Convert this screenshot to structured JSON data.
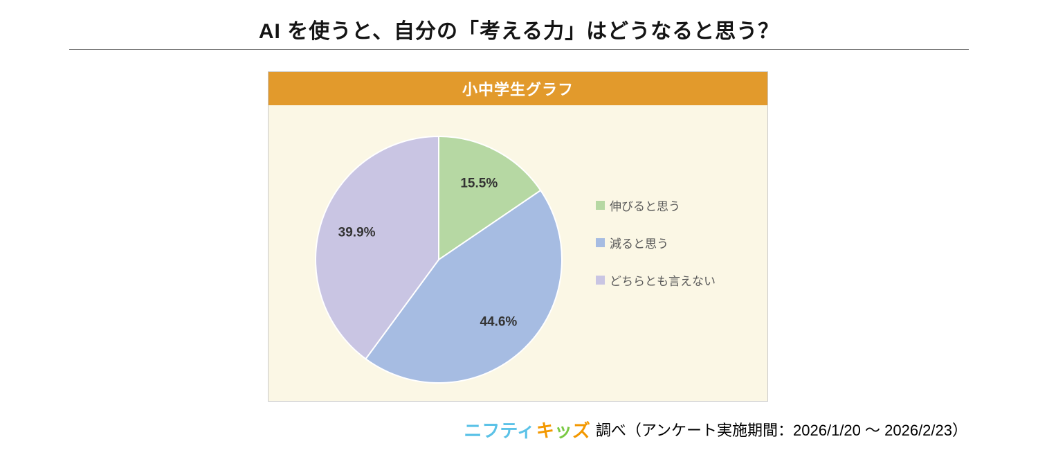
{
  "title": "AI を使うと、自分の「考える力」はどうなると思う？",
  "panel": {
    "header": "小中学生グラフ"
  },
  "chart_data": {
    "type": "pie",
    "title": "小中学生グラフ",
    "labels": [
      "伸びると思う",
      "減ると思う",
      "どちらとも言えない"
    ],
    "values": [
      15.5,
      44.6,
      39.9
    ],
    "value_labels": [
      "15.5%",
      "44.6%",
      "39.9%"
    ],
    "colors": [
      "#b6d8a3",
      "#a6bce2",
      "#c9c5e3"
    ],
    "start_angle_deg": 0,
    "direction": "clockwise",
    "legend_position": "right",
    "slice_label_color": "#333333",
    "slice_border_color": "#ffffff"
  },
  "footer": {
    "logo_nifty": "ニフティ",
    "logo_nifty_color": "#5bc2e7",
    "logo_kids": "キッズ",
    "logo_kids_colors": [
      "#f39800",
      "#7ac943",
      "#f39800"
    ],
    "note": "調べ（アンケート実施期間：2026/1/20 ～ 2026/2/23）"
  },
  "colors": {
    "panel_header_bg": "#e29a2c",
    "panel_body_bg": "#fbf7e5",
    "panel_border": "#c9c9c9"
  }
}
